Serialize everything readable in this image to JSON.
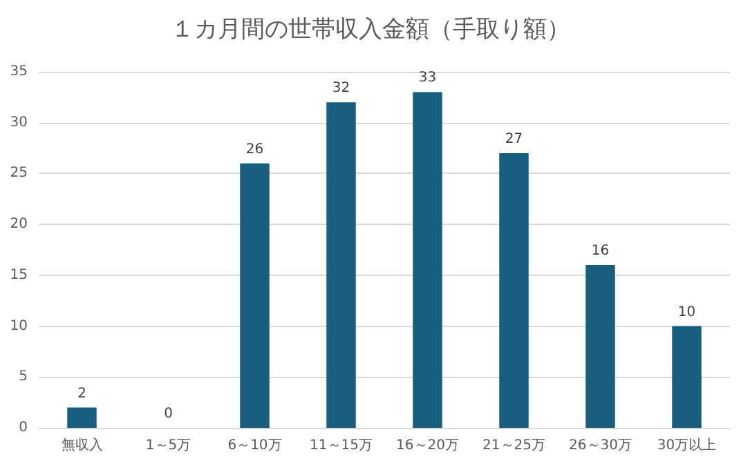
{
  "chart_data": {
    "type": "bar",
    "title": "１カ月間の世帯収入金額（手取り額）",
    "categories": [
      "無収入",
      "1～5万",
      "6～10万",
      "11～15万",
      "16～20万",
      "21～25万",
      "26～30万",
      "30万以上"
    ],
    "values": [
      2,
      0,
      26,
      32,
      33,
      27,
      16,
      10
    ],
    "color": "#175e7f",
    "ylim": [
      0,
      35
    ],
    "yticks": [
      0,
      5,
      10,
      15,
      20,
      25,
      30,
      35
    ],
    "grid": "y",
    "data_labels": true
  }
}
